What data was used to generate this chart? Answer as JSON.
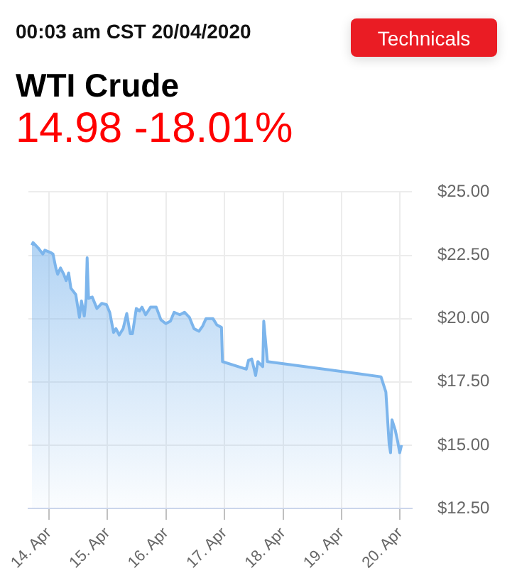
{
  "chart_data": {
    "type": "area",
    "title": "WTI Crude",
    "subtitle": "14.98 -18.01%",
    "annotations": [
      "00:03 am CST 20/04/2020",
      "Technicals"
    ],
    "x": [
      "2020-04-13T17:00",
      "2020-04-13T17:30",
      "2020-04-13T19:30",
      "2020-04-13T21:30",
      "2020-04-13T22:20",
      "2020-04-14T00:50",
      "2020-04-14T01:40",
      "2020-04-14T02:50",
      "2020-04-14T03:35",
      "2020-04-14T04:45",
      "2020-04-14T06:05",
      "2020-04-14T07:05",
      "2020-04-14T08:05",
      "2020-04-14T09:00",
      "2020-04-14T11:00",
      "2020-04-14T12:30",
      "2020-04-14T13:20",
      "2020-04-14T14:30",
      "2020-04-14T15:15",
      "2020-04-14T15:40",
      "2020-04-14T16:15",
      "2020-04-14T17:45",
      "2020-04-14T19:40",
      "2020-04-14T21:40",
      "2020-04-14T23:35",
      "2020-04-15T00:55",
      "2020-04-15T02:30",
      "2020-04-15T03:30",
      "2020-04-15T04:50",
      "2020-04-15T06:25",
      "2020-04-15T07:55",
      "2020-04-15T09:20",
      "2020-04-15T10:15",
      "2020-04-15T11:50",
      "2020-04-15T13:10",
      "2020-04-15T14:10",
      "2020-04-15T15:40",
      "2020-04-15T17:40",
      "2020-04-15T20:00",
      "2020-04-15T21:55",
      "2020-04-15T23:55",
      "2020-04-16T01:50",
      "2020-04-16T03:20",
      "2020-04-16T05:40",
      "2020-04-16T07:35",
      "2020-04-16T09:35",
      "2020-04-16T11:30",
      "2020-04-16T13:30",
      "2020-04-16T15:00",
      "2020-04-16T16:25",
      "2020-04-16T19:15",
      "2020-04-16T20:50",
      "2020-04-16T22:45",
      "2020-04-16T23:10",
      "2020-04-17T08:55",
      "2020-04-17T09:50",
      "2020-04-17T11:10",
      "2020-04-17T12:45",
      "2020-04-17T13:40",
      "2020-04-17T15:40",
      "2020-04-17T16:05",
      "2020-04-17T17:35",
      "2020-04-19T16:10",
      "2020-04-19T17:10",
      "2020-04-19T18:10",
      "2020-04-19T19:30",
      "2020-04-19T20:05",
      "2020-04-19T20:40",
      "2020-04-19T22:00",
      "2020-04-19T23:00",
      "2020-04-19T23:50",
      "2020-04-20T00:35"
    ],
    "series": [
      {
        "color": "#7cb5ec",
        "values": [
          22.9,
          23.0,
          22.8,
          22.55,
          22.7,
          22.6,
          22.55,
          22.0,
          21.75,
          22.0,
          21.75,
          21.5,
          21.8,
          21.2,
          20.95,
          20.05,
          20.7,
          20.1,
          20.8,
          22.4,
          20.8,
          20.85,
          20.4,
          20.6,
          20.55,
          20.25,
          19.45,
          19.6,
          19.35,
          19.6,
          20.2,
          19.4,
          19.4,
          20.4,
          20.3,
          20.45,
          20.15,
          20.45,
          20.45,
          19.95,
          19.8,
          19.9,
          20.25,
          20.15,
          20.25,
          20.05,
          19.6,
          19.5,
          19.7,
          20.0,
          20.0,
          19.75,
          19.65,
          18.3,
          18.0,
          18.35,
          18.4,
          17.75,
          18.3,
          18.1,
          19.9,
          18.3,
          17.7,
          17.4,
          17.1,
          15.05,
          14.7,
          16.0,
          15.6,
          15.15,
          14.7,
          15.0
        ]
      }
    ],
    "xlim": [
      "2020-04-13T15:35",
      "2020-04-20T04:50"
    ],
    "xticks": [
      {
        "value": "2020-04-14",
        "label": "14. Apr"
      },
      {
        "value": "2020-04-15",
        "label": "15. Apr"
      },
      {
        "value": "2020-04-16",
        "label": "16. Apr"
      },
      {
        "value": "2020-04-17",
        "label": "17. Apr"
      },
      {
        "value": "2020-04-18",
        "label": "18. Apr"
      },
      {
        "value": "2020-04-19",
        "label": "19. Apr"
      },
      {
        "value": "2020-04-20",
        "label": "20. Apr"
      }
    ],
    "ylim": [
      12.5,
      25
    ],
    "yticks": [
      {
        "value": 12.5,
        "label": "$12.50"
      },
      {
        "value": 15,
        "label": "$15.00"
      },
      {
        "value": 17.5,
        "label": "$17.50"
      },
      {
        "value": 20,
        "label": "$20.00"
      },
      {
        "value": 22.5,
        "label": "$22.50"
      },
      {
        "value": 25,
        "label": "$25.00"
      }
    ],
    "grid": true,
    "legend": false
  }
}
